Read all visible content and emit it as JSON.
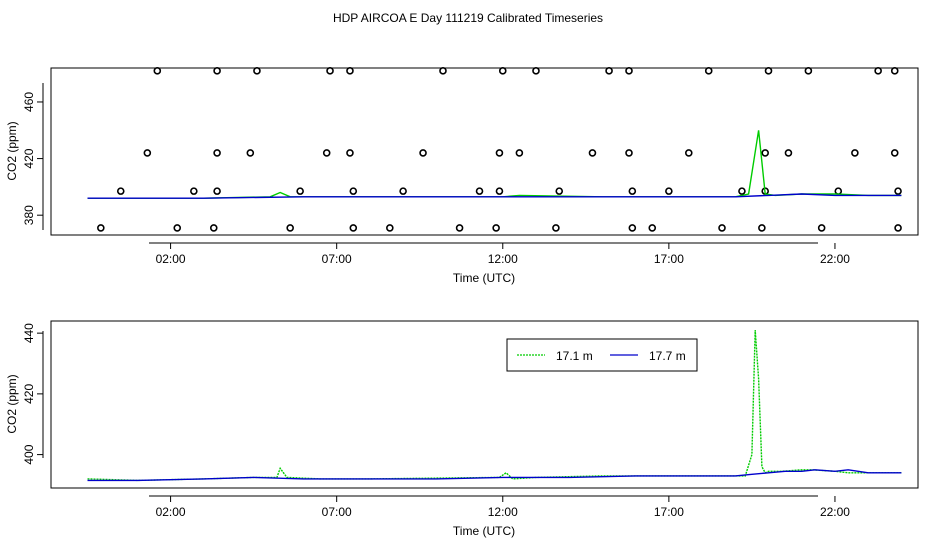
{
  "title": "HDP AIRCOA E  Day 111219  Calibrated Timeseries",
  "colors": {
    "green": "#00cc00",
    "blue": "#0000cc",
    "axis": "#000000",
    "markers": "#000000"
  },
  "chart_data": [
    {
      "type": "line",
      "panel": "top",
      "xlabel": "Time (UTC)",
      "ylabel": "CO2 (ppm)",
      "xlim": [
        -1.6,
        24.5
      ],
      "ylim": [
        366,
        484
      ],
      "x_ticks": [
        2,
        7,
        12,
        17,
        22
      ],
      "x_tick_labels": [
        "02:00",
        "07:00",
        "12:00",
        "17:00",
        "22:00"
      ],
      "y_ticks": [
        380,
        420,
        460
      ],
      "y_tick_labels": [
        "380",
        "420",
        "460"
      ],
      "series": [
        {
          "color": "green",
          "x": [
            -0.5,
            3,
            5,
            5.3,
            5.6,
            8,
            12,
            12.5,
            15,
            17,
            19,
            19.4,
            19.7,
            19.9,
            20.2,
            21,
            22,
            23,
            24
          ],
          "y": [
            392,
            392,
            393,
            396,
            393,
            393,
            393,
            394,
            393,
            393,
            393,
            395,
            440,
            395,
            394,
            395,
            395,
            394,
            394
          ]
        },
        {
          "color": "blue",
          "x": [
            -0.5,
            3,
            6,
            9,
            12,
            15,
            17,
            19,
            20,
            21,
            22,
            23,
            24
          ],
          "y": [
            392,
            392,
            393,
            393,
            393,
            393,
            393,
            393,
            394,
            395,
            394,
            394,
            394
          ]
        }
      ],
      "markers": {
        "style": "open circle",
        "x": [
          1.6,
          3.4,
          4.6,
          6.8,
          7.4,
          10.2,
          12.0,
          13.0,
          15.2,
          15.8,
          18.2,
          20.0,
          21.2,
          23.3,
          23.8,
          1.3,
          3.4,
          4.4,
          6.7,
          7.4,
          9.6,
          11.9,
          12.5,
          14.7,
          15.8,
          17.6,
          19.9,
          20.6,
          22.6,
          23.8,
          0.5,
          2.7,
          3.4,
          5.9,
          7.5,
          9.0,
          11.3,
          11.9,
          13.7,
          15.9,
          17.0,
          19.2,
          19.9,
          22.1,
          23.9,
          -0.1,
          2.2,
          3.3,
          5.6,
          7.5,
          8.6,
          10.7,
          11.8,
          13.6,
          15.9,
          16.5,
          18.6,
          19.8,
          21.6,
          23.9
        ],
        "y": [
          482,
          482,
          482,
          482,
          482,
          482,
          482,
          482,
          482,
          482,
          482,
          482,
          482,
          482,
          482,
          424,
          424,
          424,
          424,
          424,
          424,
          424,
          424,
          424,
          424,
          424,
          424,
          424,
          424,
          424,
          397,
          397,
          397,
          397,
          397,
          397,
          397,
          397,
          397,
          397,
          397,
          397,
          397,
          397,
          397,
          371,
          371,
          371,
          371,
          371,
          371,
          371,
          371,
          371,
          371,
          371,
          371,
          371,
          371,
          371
        ]
      }
    },
    {
      "type": "line",
      "panel": "bottom",
      "xlabel": "Time (UTC)",
      "ylabel": "CO2 (ppm)",
      "xlim": [
        -1.6,
        24.5
      ],
      "ylim": [
        389,
        444
      ],
      "x_ticks": [
        2,
        7,
        12,
        17,
        22
      ],
      "x_tick_labels": [
        "02:00",
        "07:00",
        "12:00",
        "17:00",
        "22:00"
      ],
      "y_ticks": [
        400,
        420,
        440
      ],
      "y_tick_labels": [
        "400",
        "420",
        "440"
      ],
      "legend": "top-right",
      "series": [
        {
          "name": "17.1 m",
          "color": "green",
          "x": [
            -0.5,
            1,
            3,
            4.5,
            5.2,
            5.3,
            5.5,
            6.5,
            8,
            11.9,
            12.1,
            12.3,
            13,
            15,
            17,
            18.5,
            19.3,
            19.5,
            19.6,
            19.7,
            19.8,
            19.9,
            20,
            20.4,
            21,
            21.3,
            22,
            22.4,
            23,
            24
          ],
          "y": [
            392,
            391.5,
            392,
            392.5,
            392.5,
            395.5,
            392.5,
            392,
            392,
            392.5,
            394,
            392,
            392.5,
            393,
            393,
            393,
            393,
            400,
            441,
            425,
            396,
            394,
            394.5,
            394.5,
            395,
            395,
            394.5,
            394,
            394,
            394
          ]
        },
        {
          "name": "17.7 m",
          "color": "blue",
          "x": [
            -0.5,
            1,
            3,
            4.5,
            6,
            8,
            10,
            12,
            14,
            16,
            18,
            19,
            19.5,
            20,
            20.5,
            21,
            21.4,
            22,
            22.4,
            23,
            24
          ],
          "y": [
            391.5,
            391.5,
            392,
            392.5,
            392,
            392,
            392,
            392.5,
            392.5,
            393,
            393,
            393,
            393.5,
            394,
            394.5,
            394.5,
            395,
            394.5,
            395,
            394,
            394
          ]
        }
      ]
    }
  ]
}
